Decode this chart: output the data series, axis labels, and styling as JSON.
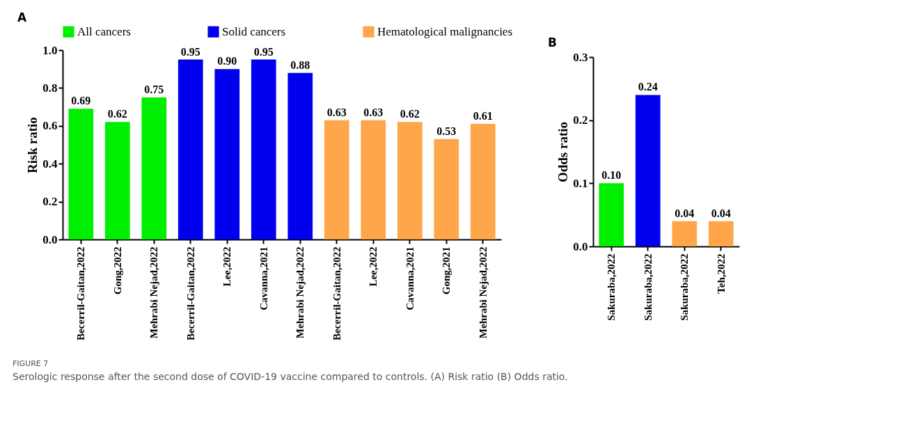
{
  "chart_data": [
    {
      "type": "bar",
      "title": "A",
      "ylabel": "Risk ratio",
      "categories": [
        "Becerril-Gaitan,2022",
        "Gong,2022",
        "Mehrabi Nejad,2022",
        "Becerril-Gaitan,2022",
        "Lee,2022",
        "Cavanna,2021",
        "Mehrabi Nejad,2022",
        "Becerril-Gaitan,2022",
        "Lee,2022",
        "Cavanna,2021",
        "Gong,2021",
        "Mehrabi Nejad,2022"
      ],
      "series": [
        {
          "name": "All cancers",
          "color": "#00ee00",
          "values": [
            0.69,
            0.62,
            0.75,
            null,
            null,
            null,
            null,
            null,
            null,
            null,
            null,
            null
          ],
          "value_labels": [
            "0.69",
            "0.62",
            "0.75",
            null,
            null,
            null,
            null,
            null,
            null,
            null,
            null,
            null
          ]
        },
        {
          "name": "Solid cancers",
          "color": "#0000ee",
          "values": [
            null,
            null,
            null,
            0.95,
            0.9,
            0.95,
            0.88,
            null,
            null,
            null,
            null,
            null
          ],
          "value_labels": [
            null,
            null,
            null,
            "0.95",
            "0.90",
            "0.95",
            "0.88",
            null,
            null,
            null,
            null,
            null
          ]
        },
        {
          "name": "Hematological malignancies",
          "color": "#ffa54a",
          "values": [
            null,
            null,
            null,
            null,
            null,
            null,
            null,
            0.63,
            0.63,
            0.62,
            0.53,
            0.61
          ],
          "value_labels": [
            null,
            null,
            null,
            null,
            null,
            null,
            null,
            "0.63",
            "0.63",
            "0.62",
            "0.53",
            "0.61"
          ]
        }
      ],
      "ylim": [
        0,
        1
      ],
      "yticks": [
        {
          "value": 0,
          "label": "0.0"
        },
        {
          "value": 0.2,
          "label": "0.2"
        },
        {
          "value": 0.4,
          "label": "0.4"
        },
        {
          "value": 0.6,
          "label": "0.6"
        },
        {
          "value": 0.8,
          "label": "0.8"
        },
        {
          "value": 1,
          "label": "1.0"
        }
      ],
      "grid": false,
      "legend": "top",
      "annotations": [
        "FIGURE 7",
        "Serologic response after the second dose of COVID-19 vaccine compared to controls. (A) Risk ratio (B) Odds ratio."
      ]
    },
    {
      "type": "bar",
      "title": "B",
      "ylabel": "Odds ratio",
      "categories": [
        "Sakuraba,2022",
        "Sakuraba,2022",
        "Sakuraba,2022",
        "Teh,2022"
      ],
      "series": [
        {
          "color": "#00ee00",
          "values": [
            0.1,
            null,
            null,
            null
          ],
          "value_labels": [
            "0.10",
            null,
            null,
            null
          ]
        },
        {
          "color": "#0000ee",
          "values": [
            null,
            0.24,
            null,
            null
          ],
          "value_labels": [
            null,
            "0.24",
            null,
            null
          ]
        },
        {
          "color": "#ffa54a",
          "values": [
            null,
            null,
            0.04,
            0.04
          ],
          "value_labels": [
            null,
            null,
            "0.04",
            "0.04"
          ]
        }
      ],
      "ylim": [
        0,
        0.3
      ],
      "yticks": [
        {
          "value": 0,
          "label": "0.0"
        },
        {
          "value": 0.1,
          "label": "0.1"
        },
        {
          "value": 0.2,
          "label": "0.2"
        },
        {
          "value": 0.3,
          "label": "0.3"
        }
      ],
      "grid": false,
      "legend": false
    }
  ]
}
